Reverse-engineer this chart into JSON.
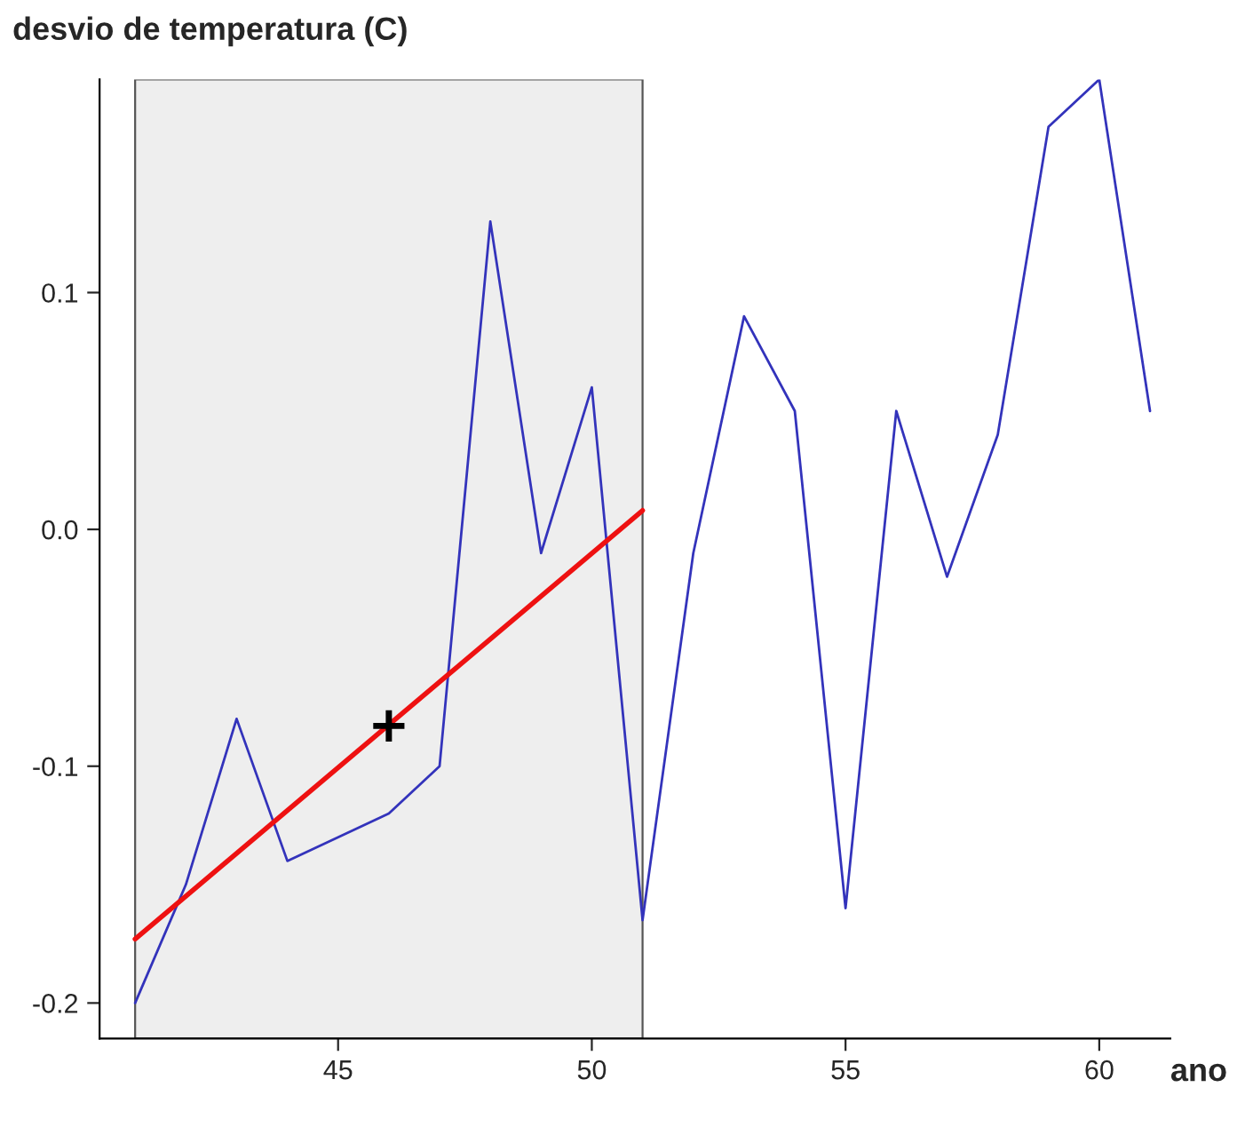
{
  "chart_data": {
    "type": "line",
    "xlabel": "ano",
    "ylabel": "desvio de temperatura (C)",
    "x": [
      41,
      42,
      43,
      44,
      45,
      46,
      47,
      48,
      49,
      50,
      51,
      52,
      53,
      54,
      55,
      56,
      57,
      58,
      59,
      60,
      61
    ],
    "series": [
      {
        "type": "line",
        "color": "#3333bb",
        "values": [
          -0.2,
          -0.15,
          -0.08,
          -0.14,
          -0.13,
          -0.12,
          -0.1,
          0.13,
          -0.01,
          0.06,
          -0.165,
          -0.01,
          0.09,
          0.05,
          -0.16,
          0.05,
          -0.02,
          0.04,
          0.17,
          0.19,
          0.05
        ]
      },
      {
        "type": "line",
        "color": "#ee1111",
        "x": [
          41,
          51
        ],
        "values": [
          -0.173,
          0.008
        ]
      },
      {
        "type": "scatter",
        "color": "#000000",
        "marker": "cross",
        "x": [
          46
        ],
        "values": [
          -0.083
        ]
      }
    ],
    "bands": [
      {
        "axis": "x",
        "from": 41,
        "to": 51,
        "color": "#eeeeee"
      }
    ],
    "xlim": [
      40.3,
      61.4
    ],
    "ylim": [
      -0.215,
      0.19
    ],
    "xticks": [
      45,
      50,
      55,
      60
    ],
    "yticks": [
      -0.2,
      -0.1,
      {
        "value": 0,
        "label": "0.0"
      },
      0.1
    ],
    "grid": false,
    "legend": false
  }
}
